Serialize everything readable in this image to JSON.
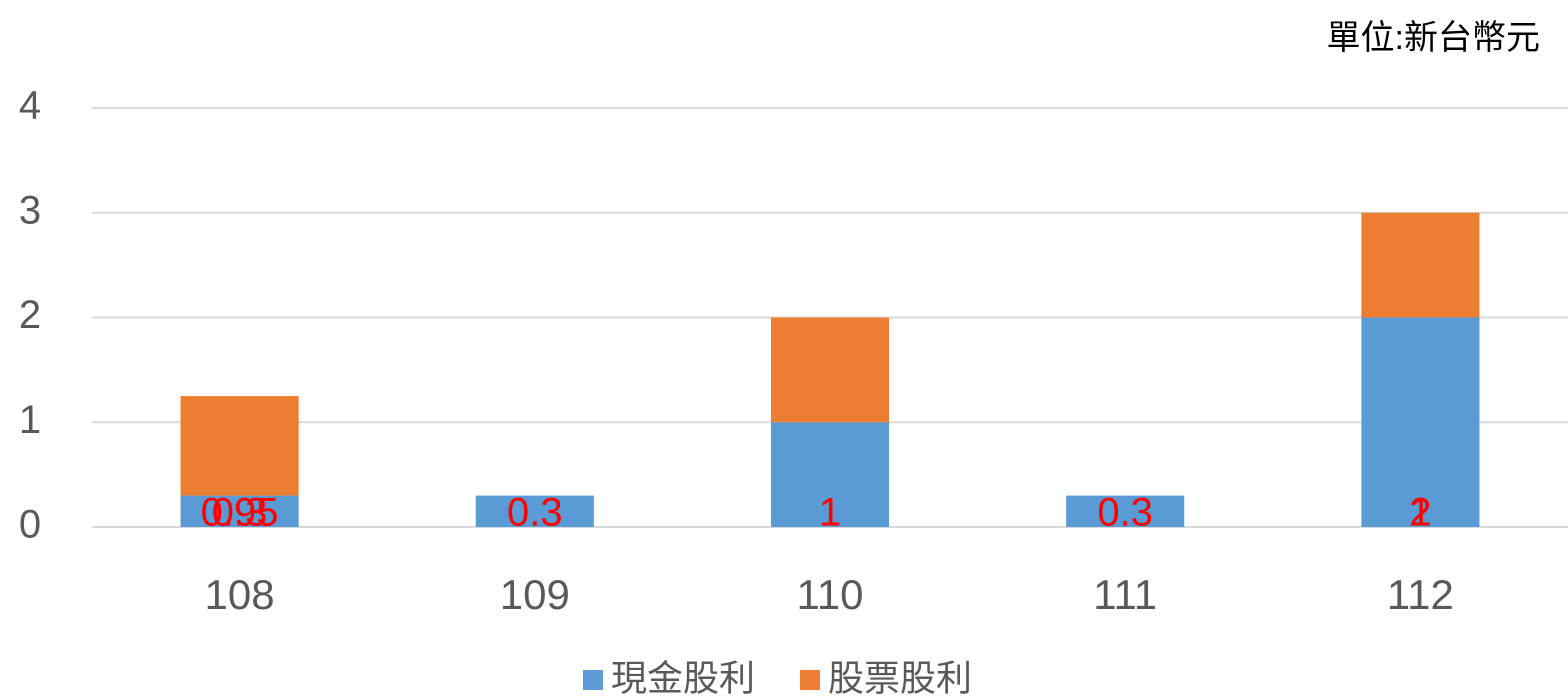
{
  "chart_data": {
    "type": "bar",
    "stacked": true,
    "unit_label": "單位:新台幣元",
    "categories": [
      "108",
      "109",
      "110",
      "111",
      "112"
    ],
    "series": [
      {
        "name": "現金股利",
        "color": "#5b9bd5",
        "values": [
          0.3,
          0.3,
          1,
          0.3,
          2
        ]
      },
      {
        "name": "股票股利",
        "color": "#ed7d31",
        "values": [
          0.95,
          null,
          1,
          null,
          1
        ]
      }
    ],
    "label_color": "#ff0000",
    "ylim": [
      0,
      4
    ],
    "yticks": [
      0,
      1,
      2,
      3,
      4
    ],
    "grid": true,
    "legend": "bottom"
  }
}
